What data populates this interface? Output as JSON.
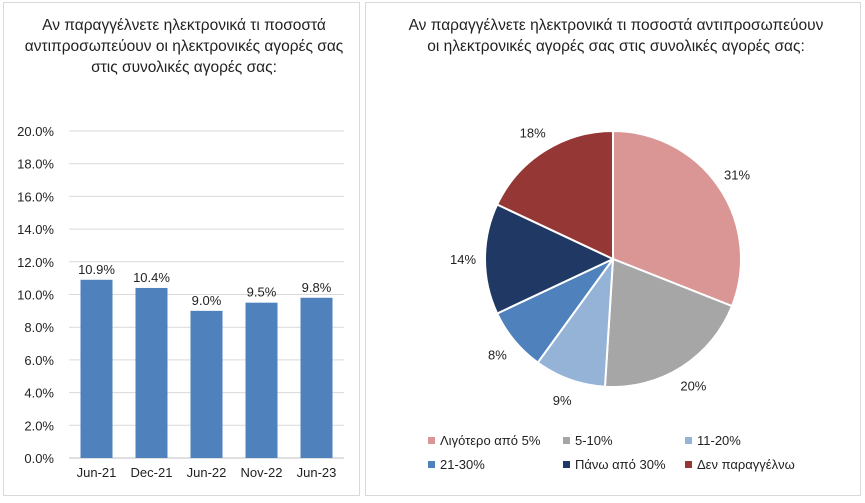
{
  "chart_data": [
    {
      "type": "bar",
      "title": "Αν παραγγέλνετε ηλεκτρονικά τι ποσοστά αντιπροσωπεύουν οι ηλεκτρονικές αγορές σας στις συνολικές αγορές σας:",
      "categories": [
        "Jun-21",
        "Dec-21",
        "Jun-22",
        "Nov-22",
        "Jun-23"
      ],
      "values": [
        10.9,
        10.4,
        9.0,
        9.5,
        9.8
      ],
      "data_labels": [
        "10.9%",
        "10.4%",
        "9.0%",
        "9.5%",
        "9.8%"
      ],
      "ylim": [
        0,
        20
      ],
      "yticks": [
        "0.0%",
        "2.0%",
        "4.0%",
        "6.0%",
        "8.0%",
        "10.0%",
        "12.0%",
        "14.0%",
        "16.0%",
        "18.0%",
        "20.0%"
      ],
      "grid": true,
      "color": "#4f81bd"
    },
    {
      "type": "pie",
      "title": "Αν παραγγέλνετε ηλεκτρονικά τι ποσοστά αντιπροσωπεύουν οι ηλεκτρονικές αγορές σας στις συνολικές αγορές σας:",
      "labels": [
        "Λιγότερο από 5%",
        "5-10%",
        "11-20%",
        "21-30%",
        "Πάνω από 30%",
        "Δεν παραγγέλνω"
      ],
      "values": [
        31,
        20,
        9,
        8,
        14,
        18
      ],
      "data_labels": [
        "31%",
        "20%",
        "9%",
        "8%",
        "14%",
        "18%"
      ],
      "colors": [
        "#d99694",
        "#a6a6a6",
        "#95b3d7",
        "#4f81bd",
        "#1f3864",
        "#953735"
      ],
      "legend": "bottom"
    }
  ]
}
